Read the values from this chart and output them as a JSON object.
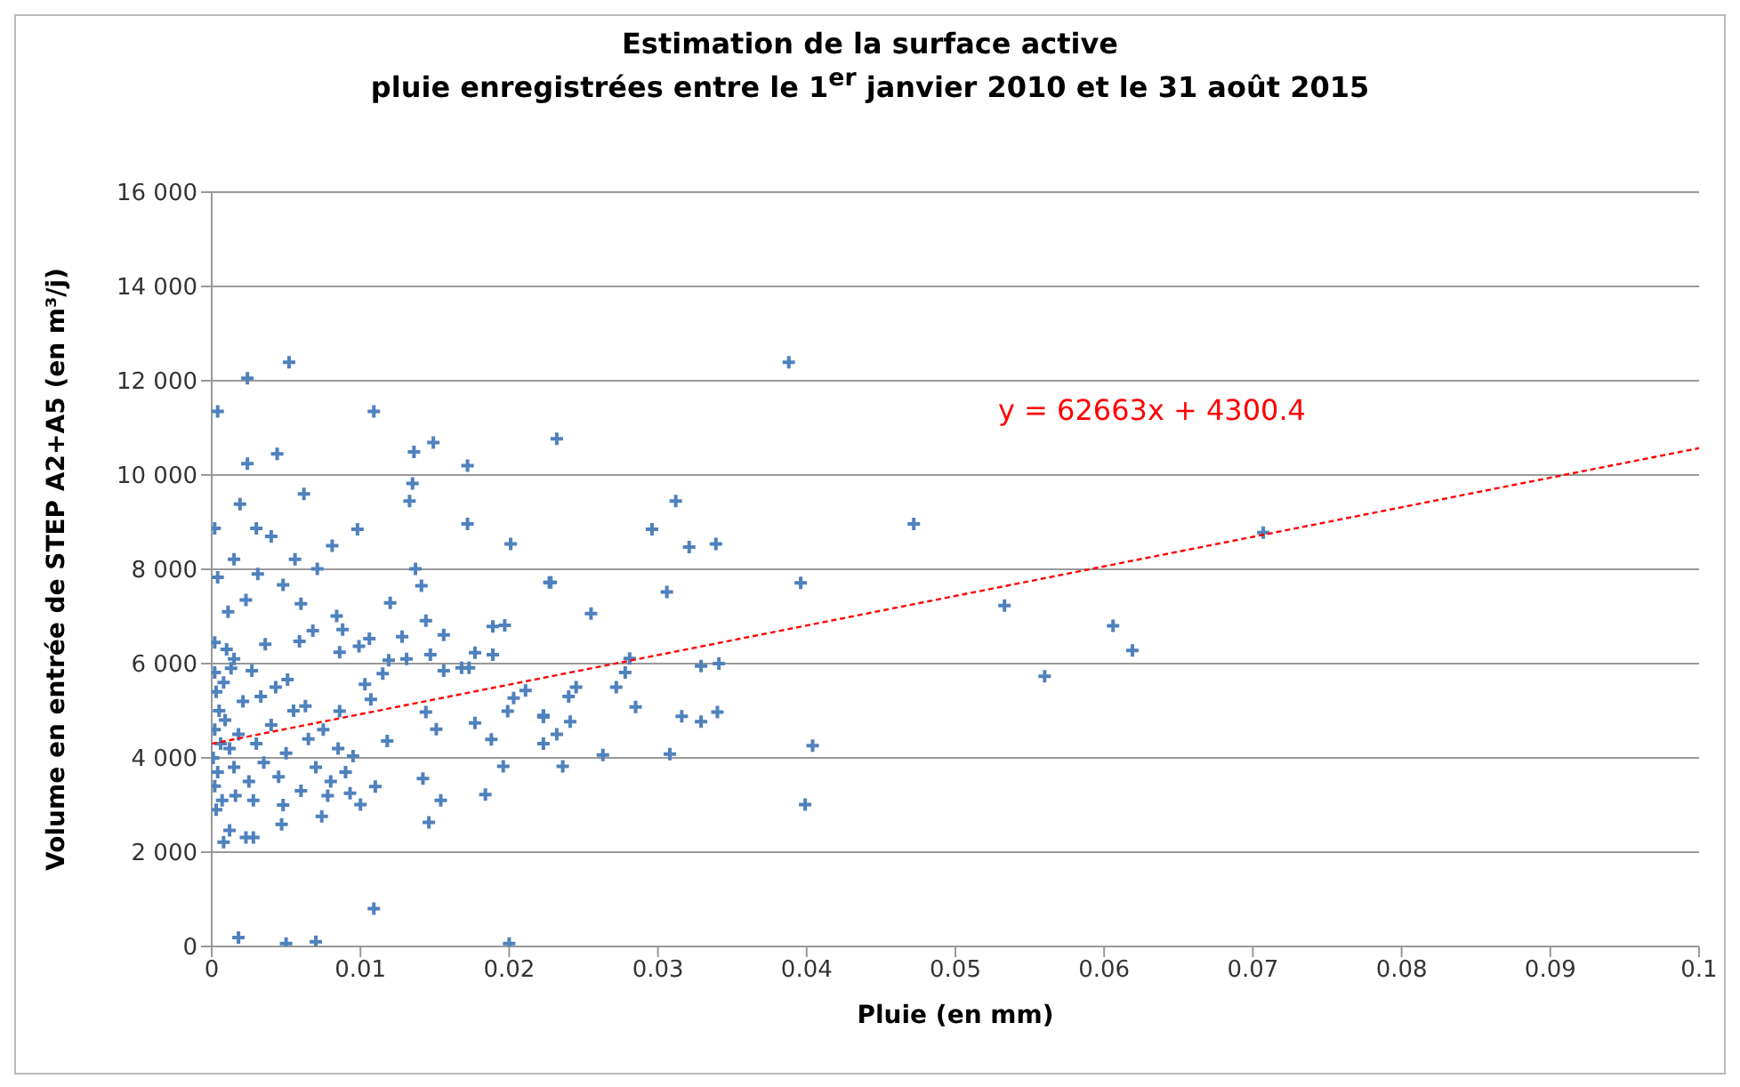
{
  "chart_data": {
    "type": "scatter",
    "title": "Estimation de la surface active",
    "subtitle": "pluie enregistrées entre le 1$^{er}$ janvier 2010 et le 31 août 2015",
    "xlabel": "Pluie (en mm)",
    "ylabel": "Volume en entrée de STEP A2+A5 (en m³/j)",
    "xlim": [
      0,
      0.1
    ],
    "xticks": [
      0,
      0.01,
      0.02,
      0.03,
      0.04,
      0.05,
      0.06,
      0.07,
      0.08,
      0.09,
      0.1
    ],
    "ylim": [
      0,
      16000
    ],
    "yticks": [
      {
        "value": 0,
        "label": "0"
      },
      {
        "value": 2000,
        "label": "2 000"
      },
      {
        "value": 4000,
        "label": "4 000"
      },
      {
        "value": 6000,
        "label": "6 000"
      },
      {
        "value": 8000,
        "label": "8 000"
      },
      {
        "value": 10000,
        "label": "10 000"
      },
      {
        "value": 12000,
        "label": "12 000"
      },
      {
        "value": 14000,
        "label": "14 000"
      },
      {
        "value": 16000,
        "label": "16 000"
      }
    ],
    "grid": "y",
    "legend": false,
    "marker": "cross",
    "annotations": [
      "y = 62663x + 4300.4"
    ],
    "series": [
      {
        "color": "#4f81bd",
        "x": [
          0.0052,
          0.0024,
          0.0004,
          0.0109,
          0.0149,
          0.0136,
          0.0044,
          0.0024,
          0.0172,
          0.0135,
          0.0133,
          0.0062,
          0.0019,
          0.0002,
          0.003,
          0.004,
          0.0098,
          0.0172,
          0.0081,
          0.0201,
          0.0056,
          0.0015,
          0.0071,
          0.0137,
          0.0004,
          0.0031,
          0.0048,
          0.0141,
          0.0228,
          0.0023,
          0.006,
          0.012,
          0.0011,
          0.0084,
          0.0144,
          0.0068,
          0.0088,
          0.0189,
          0.0197,
          0.0128,
          0.0156,
          0.0002,
          0.0036,
          0.0059,
          0.0099,
          0.0106,
          0.0086,
          0.0147,
          0.0177,
          0.0189,
          0.0015,
          0.0119,
          0.0131,
          0.0156,
          0.0168,
          0.0173,
          0.0027,
          0.0002,
          0.0051,
          0.0103,
          0.0115,
          0.0203,
          0.0211,
          0.0223,
          0.0199,
          0.0107,
          0.0086,
          0.0144,
          0.0151,
          0.0177,
          0.0188,
          0.0095,
          0.0118,
          0.0142,
          0.011,
          0.0093,
          0.01,
          0.0154,
          0.0146,
          0.0184,
          0.0196,
          0.0047,
          0.0074,
          0.0012,
          0.0008,
          0.0023,
          0.0028,
          0.0109,
          0.0018,
          0.005,
          0.007,
          0.02,
          0.0003,
          0.0005,
          0.0002,
          0.0006,
          0.0001,
          0.0004,
          0.0002,
          0.0007,
          0.0003,
          0.0009,
          0.0012,
          0.0015,
          0.0018,
          0.0021,
          0.0025,
          0.003,
          0.0035,
          0.004,
          0.0045,
          0.005,
          0.0055,
          0.006,
          0.0065,
          0.007,
          0.0075,
          0.008,
          0.0085,
          0.009,
          0.0008,
          0.0013,
          0.0033,
          0.0043,
          0.0063,
          0.0028,
          0.0048,
          0.0078,
          0.001,
          0.0016,
          0.0388,
          0.0232,
          0.0312,
          0.0296,
          0.0321,
          0.0339,
          0.0472,
          0.0227,
          0.0396,
          0.0306,
          0.0255,
          0.0281,
          0.0329,
          0.0341,
          0.0278,
          0.0272,
          0.0245,
          0.024,
          0.0285,
          0.0241,
          0.0316,
          0.0329,
          0.034,
          0.0223,
          0.0232,
          0.0223,
          0.0404,
          0.0236,
          0.0263,
          0.0308,
          0.0399,
          0.0707,
          0.0533,
          0.0606,
          0.0619,
          0.056
        ],
        "values": [
          12390,
          12050,
          11350,
          11350,
          10690,
          10490,
          10450,
          10240,
          10200,
          9820,
          9450,
          9600,
          9380,
          8870,
          8870,
          8700,
          8850,
          8960,
          8500,
          8540,
          8210,
          8210,
          8010,
          8010,
          7830,
          7900,
          7670,
          7650,
          7720,
          7350,
          7270,
          7290,
          7100,
          7010,
          6910,
          6700,
          6720,
          6790,
          6810,
          6570,
          6610,
          6450,
          6410,
          6470,
          6370,
          6530,
          6240,
          6190,
          6230,
          6190,
          6100,
          6070,
          6100,
          5850,
          5910,
          5910,
          5850,
          5810,
          5660,
          5560,
          5790,
          5270,
          5430,
          4900,
          4990,
          5240,
          4990,
          4970,
          4610,
          4740,
          4390,
          4040,
          4360,
          3560,
          3390,
          3250,
          3010,
          3100,
          2630,
          3220,
          3820,
          2590,
          2760,
          2460,
          2210,
          2310,
          2310,
          800,
          190,
          60,
          100,
          60,
          5400,
          5000,
          4600,
          4300,
          4000,
          3700,
          3400,
          3100,
          2900,
          4800,
          4200,
          3800,
          4500,
          5200,
          3500,
          4300,
          3900,
          4700,
          3600,
          4100,
          5000,
          3300,
          4400,
          3800,
          4600,
          3500,
          4200,
          3700,
          5600,
          5900,
          5300,
          5500,
          5100,
          3100,
          3000,
          3200,
          6300,
          3200,
          12390,
          10770,
          9450,
          8850,
          8470,
          8540,
          8960,
          7720,
          7710,
          7520,
          7060,
          6110,
          5950,
          6000,
          5810,
          5500,
          5500,
          5300,
          5080,
          4770,
          4880,
          4770,
          4970,
          4870,
          4500,
          4300,
          4260,
          3820,
          4060,
          4080,
          3010,
          8780,
          7230,
          6800,
          6280,
          5730
        ]
      },
      {
        "type": "line",
        "color": "#ff0000",
        "line_style": "dashed",
        "marker": "none",
        "x": [
          0,
          0.1
        ],
        "values": [
          4300,
          10570
        ]
      }
    ]
  }
}
